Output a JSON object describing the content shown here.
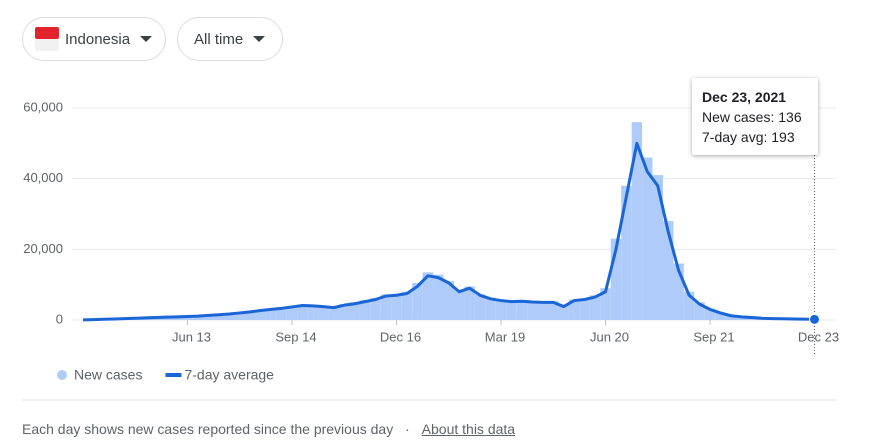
{
  "controls": {
    "country": "Indonesia",
    "range": "All time"
  },
  "chart_data": {
    "type": "combo",
    "categories": [
      null,
      null,
      null,
      null,
      null,
      null,
      null,
      null,
      null,
      null,
      "Jun 13",
      null,
      null,
      null,
      null,
      null,
      null,
      null,
      null,
      null,
      "Sep 14",
      null,
      null,
      null,
      null,
      null,
      null,
      null,
      null,
      null,
      "Dec 16",
      null,
      null,
      null,
      null,
      null,
      null,
      null,
      null,
      null,
      "Mar 19",
      null,
      null,
      null,
      null,
      null,
      null,
      null,
      null,
      null,
      "Jun 20",
      null,
      null,
      null,
      null,
      null,
      null,
      null,
      null,
      null,
      "Sep 21",
      null,
      null,
      null,
      null,
      null,
      null,
      null,
      null,
      null,
      "Dec 23"
    ],
    "series": [
      {
        "name": "New cases",
        "mark": "bar",
        "color": "#aecbfa",
        "values": [
          0,
          150,
          250,
          350,
          450,
          550,
          650,
          750,
          900,
          1000,
          1100,
          1200,
          1400,
          1600,
          1900,
          2100,
          2500,
          2900,
          3200,
          3600,
          3900,
          4300,
          4100,
          3700,
          3800,
          4500,
          5000,
          5600,
          6200,
          7200,
          7400,
          8000,
          10500,
          13500,
          12800,
          11000,
          8500,
          9500,
          7200,
          6300,
          5800,
          5400,
          5600,
          5300,
          5200,
          5300,
          4200,
          5800,
          6100,
          7000,
          9000,
          23000,
          38000,
          56000,
          46000,
          41000,
          28000,
          16000,
          8000,
          5000,
          3200,
          2100,
          1300,
          950,
          750,
          550,
          420,
          360,
          310,
          260,
          136
        ]
      },
      {
        "name": "7-day average",
        "mark": "line",
        "color": "#1a66d6",
        "values": [
          50,
          100,
          200,
          300,
          400,
          500,
          600,
          700,
          800,
          900,
          1000,
          1100,
          1300,
          1500,
          1700,
          2000,
          2300,
          2700,
          3000,
          3300,
          3700,
          4100,
          4000,
          3800,
          3500,
          4200,
          4600,
          5200,
          5800,
          6800,
          7000,
          7500,
          9500,
          12500,
          12000,
          10500,
          8000,
          9000,
          7000,
          6000,
          5500,
          5200,
          5300,
          5100,
          5000,
          5000,
          3800,
          5500,
          5800,
          6500,
          8000,
          20000,
          35000,
          50000,
          42000,
          38000,
          25000,
          14000,
          7000,
          4500,
          3000,
          2000,
          1200,
          900,
          700,
          500,
          400,
          350,
          300,
          250,
          193
        ]
      }
    ],
    "ylim": [
      0,
      60000
    ],
    "yticks": [
      0,
      {
        "value": 20000,
        "label": "20,000"
      },
      {
        "value": 40000,
        "label": "40,000"
      },
      {
        "value": 60000,
        "label": "60,000"
      }
    ],
    "grid": true,
    "tooltip": {
      "date": "Dec 23, 2021",
      "lines": [
        "New cases: 136",
        "7-day avg: 193"
      ]
    }
  },
  "footer": {
    "note": "Each day shows new cases reported since the previous day",
    "separator": "·",
    "link": "About this data"
  }
}
